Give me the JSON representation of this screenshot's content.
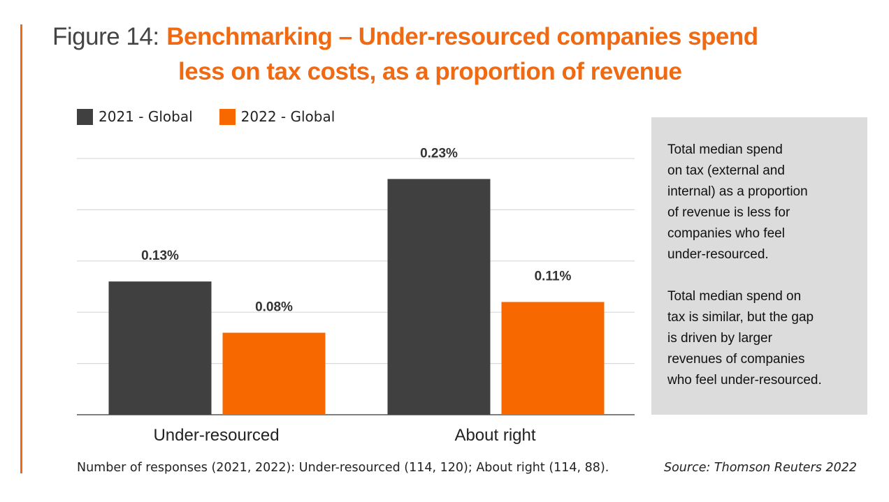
{
  "title": {
    "prefix": "Figure 14:",
    "line1": "Benchmarking – Under-resourced companies spend",
    "line2": "less on tax costs, as a proportion of revenue"
  },
  "colors": {
    "accent": "#f06a14",
    "series_2021": "#404040",
    "series_2022": "#f86800",
    "grid": "#d9d9d9",
    "box": "#dcdcdc"
  },
  "chart_data": {
    "type": "bar",
    "categories": [
      "Under-resourced",
      "About right"
    ],
    "series": [
      {
        "name": "2021 - Global",
        "values": [
          0.13,
          0.23
        ],
        "labels": [
          "0.13%",
          "0.23%"
        ]
      },
      {
        "name": "2022 - Global",
        "values": [
          0.08,
          0.11
        ],
        "labels": [
          "0.08%",
          "0.11%"
        ]
      }
    ],
    "ylim": [
      0,
      0.25
    ],
    "gridlines": [
      0.05,
      0.1,
      0.15,
      0.2,
      0.25
    ],
    "grid": true,
    "legend": "top-left",
    "unit": "%"
  },
  "note": {
    "paragraphs": [
      [
        "Total median spend",
        "on tax (external and",
        "internal) as a proportion",
        "of revenue is less for",
        "companies who feel",
        "under-resourced."
      ],
      [
        "Total median spend on",
        "tax is similar, but the gap",
        "is driven by larger",
        "revenues of companies",
        "who feel under-resourced."
      ]
    ]
  },
  "footnote": "Number of responses (2021, 2022): Under-resourced (114, 120); About right (114, 88).",
  "source": "Source: Thomson Reuters 2022"
}
